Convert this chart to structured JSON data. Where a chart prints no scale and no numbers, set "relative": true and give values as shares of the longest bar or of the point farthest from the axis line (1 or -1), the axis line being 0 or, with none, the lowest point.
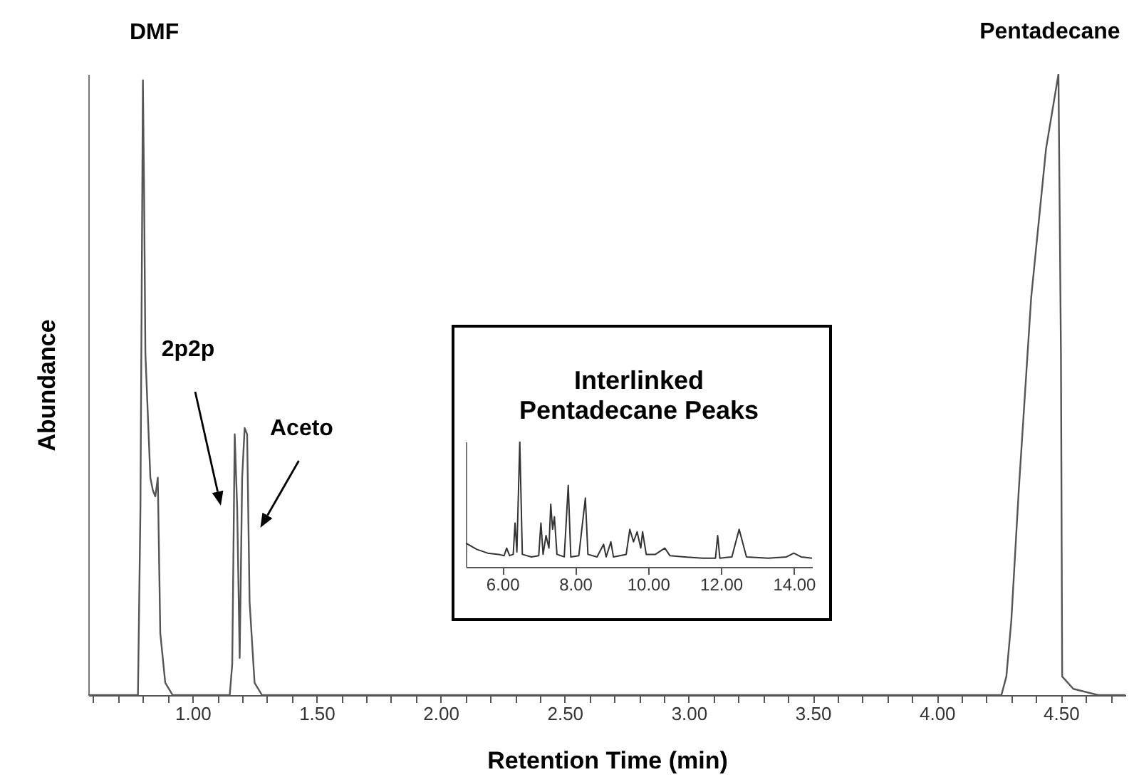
{
  "chart_data": [
    {
      "type": "line",
      "xlabel": "Retention Time (min)",
      "ylabel": "Abundance",
      "relative": true,
      "tick_labels": "x",
      "xlim": [
        0.58,
        4.76
      ],
      "xticks": [
        {
          "value": 0.6,
          "label": null
        },
        {
          "value": 0.7,
          "label": null
        },
        {
          "value": 0.8,
          "label": null
        },
        {
          "value": 0.9,
          "label": null
        },
        {
          "value": 1,
          "label": "1.00"
        },
        {
          "value": 1.1,
          "label": null
        },
        {
          "value": 1.2,
          "label": null
        },
        {
          "value": 1.3,
          "label": null
        },
        {
          "value": 1.4,
          "label": null
        },
        {
          "value": 1.5,
          "label": "1.50"
        },
        {
          "value": 1.6,
          "label": null
        },
        {
          "value": 1.7,
          "label": null
        },
        {
          "value": 1.8,
          "label": null
        },
        {
          "value": 1.9,
          "label": null
        },
        {
          "value": 2,
          "label": "2.00"
        },
        {
          "value": 2.1,
          "label": null
        },
        {
          "value": 2.2,
          "label": null
        },
        {
          "value": 2.3,
          "label": null
        },
        {
          "value": 2.4,
          "label": null
        },
        {
          "value": 2.5,
          "label": "2.50"
        },
        {
          "value": 2.6,
          "label": null
        },
        {
          "value": 2.7,
          "label": null
        },
        {
          "value": 2.8,
          "label": null
        },
        {
          "value": 2.9,
          "label": null
        },
        {
          "value": 3,
          "label": "3.00"
        },
        {
          "value": 3.1,
          "label": null
        },
        {
          "value": 3.2,
          "label": null
        },
        {
          "value": 3.3,
          "label": null
        },
        {
          "value": 3.4,
          "label": null
        },
        {
          "value": 3.5,
          "label": "3.50"
        },
        {
          "value": 3.6,
          "label": null
        },
        {
          "value": 3.7,
          "label": null
        },
        {
          "value": 3.8,
          "label": null
        },
        {
          "value": 3.9,
          "label": null
        },
        {
          "value": 4,
          "label": "4.00"
        },
        {
          "value": 4.1,
          "label": null
        },
        {
          "value": 4.2,
          "label": null
        },
        {
          "value": 4.3,
          "label": null
        },
        {
          "value": 4.4,
          "label": null
        },
        {
          "value": 4.5,
          "label": "4.50"
        },
        {
          "value": 4.6,
          "label": null
        },
        {
          "value": 4.7,
          "label": null
        }
      ],
      "annotations": [
        {
          "text": "DMF",
          "x": 0.8,
          "y": 0.99
        },
        {
          "text": "Pentadecane",
          "x": 4.49,
          "y": 1.0
        },
        "2p2p",
        {
          "text": "Aceto",
          "x": 1.21,
          "y": 0.43
        }
      ],
      "series": [
        {
          "color": "#555555",
          "x": [
            0.58,
            0.78,
            0.79,
            0.8,
            0.805,
            0.81,
            0.83,
            0.84,
            0.85,
            0.86,
            0.87,
            0.89,
            0.92,
            1.15,
            1.16,
            1.17,
            1.18,
            1.19,
            1.2,
            1.21,
            1.22,
            1.23,
            1.25,
            1.28,
            4.26,
            4.28,
            4.3,
            4.33,
            4.38,
            4.44,
            4.49,
            4.5,
            4.505,
            4.55,
            4.65,
            4.76
          ],
          "values": [
            0,
            0,
            0.3,
            0.99,
            0.8,
            0.55,
            0.35,
            0.33,
            0.32,
            0.35,
            0.1,
            0.02,
            0,
            0,
            0.05,
            0.42,
            0.3,
            0.06,
            0.35,
            0.43,
            0.42,
            0.15,
            0.02,
            0,
            0,
            0.03,
            0.12,
            0.33,
            0.64,
            0.88,
            1.0,
            0.55,
            0.03,
            0.01,
            0,
            0
          ]
        }
      ]
    },
    {
      "type": "line",
      "title": "Interlinked\nPentadecane Peaks",
      "relative": true,
      "tick_labels": "x",
      "xlim": [
        5.0,
        14.5
      ],
      "xticks": [
        {
          "value": 6,
          "label": "6.00"
        },
        {
          "value": 8,
          "label": "8.00"
        },
        {
          "value": 10,
          "label": "10.00"
        },
        {
          "value": 12,
          "label": "12.00"
        },
        {
          "value": 14,
          "label": "14.00"
        }
      ],
      "series": [
        {
          "color": "#333333",
          "x": [
            5.0,
            5.3,
            5.6,
            5.9,
            6.05,
            6.12,
            6.2,
            6.3,
            6.35,
            6.4,
            6.48,
            6.55,
            6.8,
            7.0,
            7.06,
            7.12,
            7.2,
            7.28,
            7.33,
            7.38,
            7.43,
            7.5,
            7.7,
            7.81,
            7.88,
            8.1,
            8.28,
            8.35,
            8.6,
            8.78,
            8.85,
            8.98,
            9.05,
            9.4,
            9.5,
            9.6,
            9.7,
            9.8,
            9.85,
            9.95,
            10.2,
            10.46,
            10.6,
            11.0,
            11.5,
            11.85,
            11.91,
            11.97,
            12.3,
            12.5,
            12.7,
            13.3,
            13.8,
            14.0,
            14.2,
            14.5
          ],
          "values": [
            0.19,
            0.14,
            0.11,
            0.1,
            0.09,
            0.15,
            0.09,
            0.1,
            0.35,
            0.12,
            1.0,
            0.1,
            0.08,
            0.09,
            0.35,
            0.1,
            0.25,
            0.15,
            0.5,
            0.3,
            0.4,
            0.1,
            0.08,
            0.65,
            0.08,
            0.09,
            0.55,
            0.1,
            0.08,
            0.18,
            0.08,
            0.2,
            0.08,
            0.1,
            0.3,
            0.2,
            0.28,
            0.15,
            0.28,
            0.1,
            0.1,
            0.15,
            0.09,
            0.08,
            0.07,
            0.07,
            0.25,
            0.07,
            0.08,
            0.3,
            0.08,
            0.07,
            0.08,
            0.11,
            0.08,
            0.07
          ]
        }
      ]
    }
  ]
}
